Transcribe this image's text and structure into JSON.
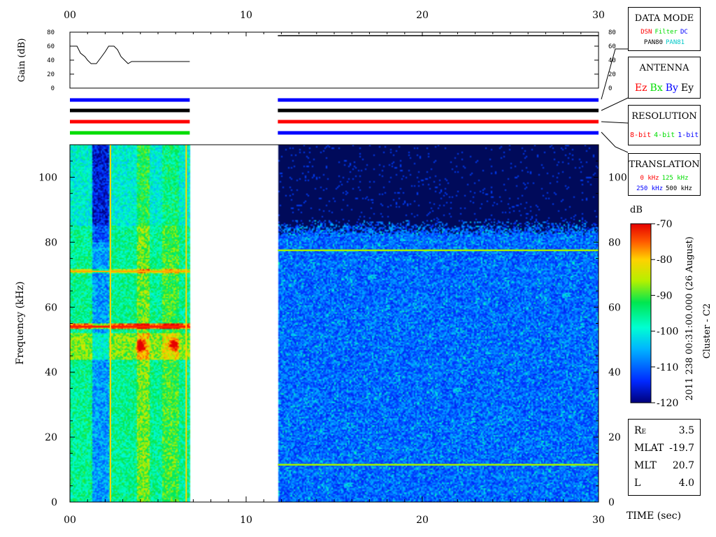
{
  "colors": {
    "blue": "#0000ff",
    "black": "#000000",
    "red": "#ff0000",
    "green": "#00dd00",
    "cyan": "#00c8c8",
    "spectro_bg": "#000a5a"
  },
  "chart_data": [
    {
      "type": "line",
      "panel": "gain",
      "ylabel": "Gain (dB)",
      "ylim": [
        0,
        80
      ],
      "yticks": [
        "0",
        "20",
        "40",
        "60",
        "80"
      ],
      "xlim": [
        0,
        30
      ],
      "xticks": [
        "00",
        "10",
        "20",
        "30"
      ],
      "series": [
        {
          "x": [
            0.05,
            0.4,
            0.6,
            0.85,
            1.0,
            1.2,
            1.5,
            1.8,
            2.0,
            2.2,
            2.5,
            2.7,
            2.9,
            3.1,
            3.3,
            3.5,
            4.0,
            5.0,
            6.0,
            6.8
          ],
          "y": [
            60,
            60,
            50,
            45,
            40,
            35,
            35,
            45,
            52,
            60,
            60,
            55,
            45,
            40,
            35,
            38,
            38,
            38,
            38,
            38
          ]
        },
        {
          "x": [
            11.8,
            30
          ],
          "y": [
            75,
            75
          ]
        }
      ]
    },
    {
      "type": "heatmap",
      "panel": "spectrogram",
      "xlabel": "TIME (sec)",
      "ylabel": "Frequency (kHz)",
      "xlim": [
        0,
        30
      ],
      "ylim": [
        0,
        110
      ],
      "xticks": [
        "00",
        "10",
        "20",
        "30"
      ],
      "yticks": [
        "0",
        "20",
        "40",
        "60",
        "80",
        "100"
      ],
      "colorbar": {
        "label": "dB",
        "min": -120,
        "max": -70,
        "ticks": [
          "-70",
          "-80",
          "-90",
          "-100",
          "-110",
          "-120"
        ]
      },
      "segments": [
        {
          "name": "",
          "t_start": 0,
          "t_end": 6.8,
          "lines_khz": [
            54,
            71
          ],
          "blobs": [
            {
              "t": 4.0,
              "f": 48
            },
            {
              "t": 5.9,
              "f": 48.5
            }
          ]
        },
        {
          "name": "",
          "t_start": 11.8,
          "t_end": 30,
          "cutoff_khz": 83,
          "lines_khz": [
            11.5,
            77.5
          ]
        }
      ]
    }
  ],
  "mode_bars": [
    {
      "segments": [
        [
          0,
          6.8
        ],
        [
          11.8,
          30
        ]
      ],
      "colors": [
        "#0000ff",
        "#0000ff"
      ]
    },
    {
      "segments": [
        [
          0,
          6.8
        ],
        [
          11.8,
          30
        ]
      ],
      "colors": [
        "#000000",
        "#000000"
      ]
    },
    {
      "segments": [
        [
          0,
          6.8
        ],
        [
          11.8,
          30
        ]
      ],
      "colors": [
        "#ff0000",
        "#ff0000"
      ]
    },
    {
      "segments": [
        [
          0,
          6.8
        ],
        [
          11.8,
          30
        ]
      ],
      "colors": [
        "#00dd00",
        "#0000ff"
      ]
    }
  ],
  "legend": {
    "data_mode": {
      "title": "DATA MODE",
      "row1": [
        {
          "t": "DSN",
          "c": "#ff0000"
        },
        {
          "t": "Filter",
          "c": "#00dd00"
        },
        {
          "t": "DC",
          "c": "#0000ff"
        }
      ],
      "row2": [
        {
          "t": "PAN80",
          "c": "#000000"
        },
        {
          "t": "PAN81",
          "c": "#00c8c8"
        }
      ]
    },
    "antenna": {
      "title": "ANTENNA",
      "row1": [
        {
          "t": "Ez",
          "c": "#ff0000"
        },
        {
          "t": "Bx",
          "c": "#00dd00"
        },
        {
          "t": "By",
          "c": "#0000ff"
        },
        {
          "t": "Ey",
          "c": "#000000"
        }
      ]
    },
    "resolution": {
      "title": "RESOLUTION",
      "row1": [
        {
          "t": "8-bit",
          "c": "#ff0000"
        },
        {
          "t": "4-bit",
          "c": "#00dd00"
        },
        {
          "t": "1-bit",
          "c": "#0000ff"
        }
      ]
    },
    "translation": {
      "title": "TRANSLATION",
      "row1": [
        {
          "t": "0 kHz",
          "c": "#ff0000"
        },
        {
          "t": "125 kHz",
          "c": "#00dd00"
        }
      ],
      "row2": [
        {
          "t": "250 kHz",
          "c": "#0000ff"
        },
        {
          "t": "500 kHz",
          "c": "#000000"
        }
      ]
    }
  },
  "side_title": "2011 238 00:31:00.000 (26 August)",
  "side_subtitle": "Cluster - C2",
  "info": [
    {
      "label": "R",
      "sub": "E",
      "value": "3.5"
    },
    {
      "label": "MLAT",
      "value": "-19.7"
    },
    {
      "label": "MLT",
      "value": "20.7"
    },
    {
      "label": "L",
      "value": "4.0"
    }
  ]
}
